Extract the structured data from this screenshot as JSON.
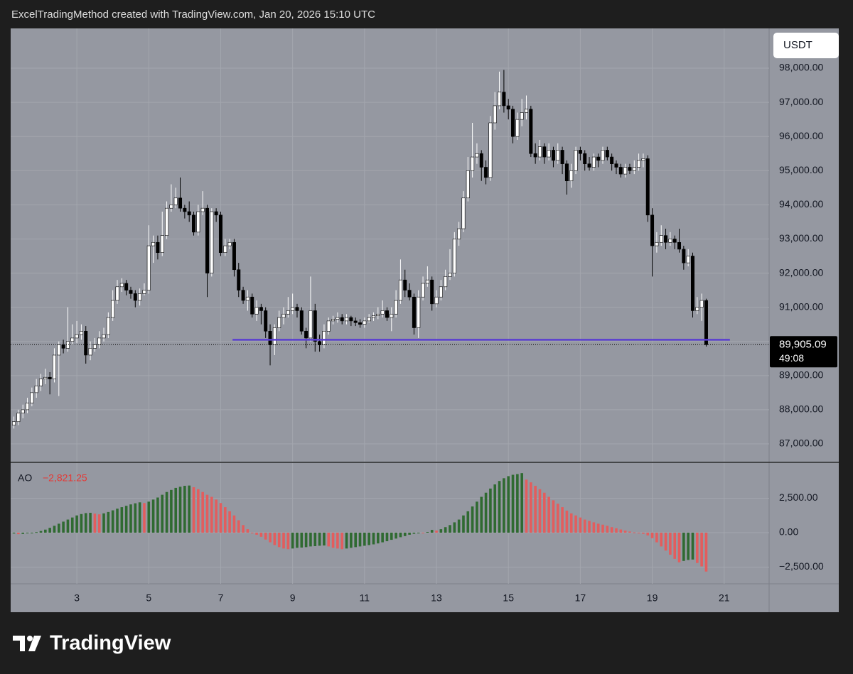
{
  "header": "ExcelTradingMethod created with TradingView.com, Jan 20, 2026 15:10 UTC",
  "currency_button": "USDT",
  "brand": "TradingView",
  "chart_data": [
    {
      "type": "candlestick",
      "x": [
        1.25,
        1.375,
        1.5,
        1.625,
        1.75,
        1.875,
        2,
        2.125,
        2.25,
        2.375,
        2.5,
        2.625,
        2.75,
        2.875,
        3,
        3.125,
        3.25,
        3.375,
        3.5,
        3.625,
        3.75,
        3.875,
        4,
        4.125,
        4.25,
        4.375,
        4.5,
        4.625,
        4.75,
        4.875,
        5,
        5.125,
        5.25,
        5.375,
        5.5,
        5.625,
        5.75,
        5.875,
        6,
        6.125,
        6.25,
        6.375,
        6.5,
        6.625,
        6.75,
        6.875,
        7,
        7.125,
        7.25,
        7.375,
        7.5,
        7.625,
        7.75,
        7.875,
        8,
        8.125,
        8.25,
        8.375,
        8.5,
        8.625,
        8.75,
        8.875,
        9,
        9.125,
        9.25,
        9.375,
        9.5,
        9.625,
        9.75,
        9.875,
        10,
        10.125,
        10.25,
        10.375,
        10.5,
        10.625,
        10.75,
        10.875,
        11,
        11.125,
        11.25,
        11.375,
        11.5,
        11.625,
        11.75,
        11.875,
        12,
        12.125,
        12.25,
        12.375,
        12.5,
        12.625,
        12.75,
        12.875,
        13,
        13.125,
        13.25,
        13.375,
        13.5,
        13.625,
        13.75,
        13.875,
        14,
        14.125,
        14.25,
        14.375,
        14.5,
        14.625,
        14.75,
        14.875,
        15,
        15.125,
        15.25,
        15.375,
        15.5,
        15.625,
        15.75,
        15.875,
        16,
        16.125,
        16.25,
        16.375,
        16.5,
        16.625,
        16.75,
        16.875,
        17,
        17.125,
        17.25,
        17.375,
        17.5,
        17.625,
        17.75,
        17.875,
        18,
        18.125,
        18.25,
        18.375,
        18.5,
        18.625,
        18.75,
        18.875,
        19,
        19.125,
        19.25,
        19.375,
        19.5,
        19.625,
        19.75,
        19.875,
        20,
        20.125,
        20.25,
        20.375,
        20.5
      ],
      "open": [
        87550,
        87650,
        87900,
        88000,
        88200,
        88500,
        88700,
        88900,
        88950,
        88900,
        89600,
        89900,
        89800,
        90000,
        90100,
        90200,
        90300,
        89600,
        89800,
        89900,
        90100,
        90200,
        90700,
        91200,
        91600,
        91700,
        91500,
        91400,
        91200,
        91400,
        91500,
        92800,
        92900,
        92600,
        93100,
        93900,
        94000,
        94200,
        93900,
        93800,
        93700,
        93200,
        93800,
        93900,
        92000,
        93800,
        93700,
        92600,
        92800,
        92900,
        92100,
        91500,
        91200,
        91300,
        90800,
        91000,
        90900,
        90300,
        89900,
        90400,
        90700,
        90800,
        90900,
        91000,
        90900,
        90300,
        90100,
        90900,
        90000,
        89900,
        90300,
        90600,
        90650,
        90700,
        90600,
        90700,
        90600,
        90550,
        90500,
        90600,
        90700,
        90750,
        90800,
        90900,
        90700,
        90800,
        91200,
        91800,
        91500,
        91300,
        90400,
        91300,
        91700,
        91800,
        91100,
        91300,
        91600,
        91900,
        92000,
        93000,
        93300,
        94200,
        95000,
        95400,
        95500,
        95100,
        94800,
        96400,
        96900,
        97300,
        96900,
        96800,
        96000,
        96500,
        96700,
        96800,
        95500,
        95400,
        95700,
        95400,
        95600,
        95300,
        95600,
        95200,
        94700,
        95000,
        95600,
        95500,
        95200,
        95100,
        95400,
        95300,
        95600,
        95400,
        95200,
        95100,
        94900,
        95100,
        95000,
        95100,
        95300,
        95350,
        93700,
        92800,
        92900,
        93100,
        92900,
        93000,
        92900,
        92700,
        92300,
        92500,
        90900,
        91000,
        91200
      ],
      "high": [
        87800,
        88000,
        88150,
        88350,
        88650,
        88900,
        89050,
        89200,
        89100,
        89800,
        90000,
        90050,
        91000,
        90500,
        90600,
        90500,
        90450,
        90000,
        90100,
        90300,
        90400,
        90850,
        91500,
        91800,
        91850,
        91800,
        91600,
        91500,
        91550,
        91700,
        93400,
        93100,
        93100,
        93800,
        94100,
        94600,
        94500,
        94800,
        94000,
        94100,
        93800,
        94000,
        94400,
        94000,
        93900,
        93900,
        93800,
        93000,
        93000,
        93000,
        92300,
        91600,
        91500,
        91400,
        91200,
        91100,
        91000,
        90500,
        90500,
        90900,
        91000,
        91300,
        91400,
        91100,
        91000,
        90400,
        91900,
        91100,
        90200,
        90500,
        90700,
        90750,
        90850,
        90800,
        90800,
        90750,
        90700,
        90650,
        90700,
        90800,
        90850,
        91000,
        91200,
        91000,
        91000,
        91500,
        92400,
        92100,
        91700,
        91400,
        91500,
        91900,
        92200,
        91900,
        91500,
        91800,
        92100,
        92700,
        93200,
        93500,
        94400,
        95400,
        96400,
        95800,
        95600,
        95300,
        96600,
        97300,
        97900,
        97950,
        97100,
        96900,
        96700,
        97100,
        97200,
        96900,
        95800,
        95900,
        95800,
        95800,
        95700,
        95800,
        95700,
        95300,
        95200,
        95700,
        95700,
        95600,
        95400,
        95500,
        95500,
        95700,
        95700,
        95500,
        95300,
        95200,
        95200,
        95200,
        95300,
        95500,
        95500,
        95450,
        93900,
        93200,
        93400,
        93300,
        93200,
        93100,
        93300,
        92800,
        92700,
        92600,
        91300,
        91400,
        91250
      ],
      "low": [
        87450,
        87550,
        87750,
        87900,
        88100,
        88350,
        88550,
        88750,
        88450,
        88800,
        88400,
        89650,
        89700,
        89900,
        89950,
        90050,
        89350,
        89450,
        89700,
        89800,
        90000,
        90100,
        90600,
        91100,
        91450,
        91350,
        91250,
        91000,
        91050,
        91350,
        91400,
        92300,
        92400,
        92500,
        93000,
        93800,
        93900,
        93800,
        93600,
        93500,
        93100,
        93100,
        93700,
        91300,
        91900,
        93500,
        92500,
        92500,
        92700,
        91900,
        91300,
        91100,
        90900,
        90700,
        90600,
        90500,
        90100,
        89300,
        89600,
        90300,
        90500,
        90700,
        90800,
        90700,
        90200,
        89800,
        90000,
        89700,
        89700,
        89800,
        90200,
        90500,
        90550,
        90500,
        90500,
        90450,
        90450,
        90400,
        90400,
        90550,
        90600,
        90650,
        90700,
        90600,
        90300,
        90700,
        91100,
        91300,
        91200,
        90200,
        90100,
        91200,
        91600,
        90900,
        91000,
        91200,
        91500,
        91800,
        91900,
        92800,
        93200,
        94100,
        94800,
        95200,
        94700,
        94600,
        94700,
        96200,
        96800,
        96700,
        96500,
        95800,
        95900,
        96300,
        96500,
        95400,
        95200,
        95300,
        95200,
        95300,
        95100,
        95200,
        94900,
        94300,
        94500,
        94900,
        95300,
        95000,
        95000,
        95000,
        95100,
        95200,
        95300,
        95000,
        94900,
        94800,
        94800,
        94900,
        94900,
        95000,
        95100,
        93500,
        91900,
        92600,
        92800,
        92700,
        92800,
        92700,
        92600,
        92100,
        92200,
        90700,
        90800,
        90600,
        89850
      ],
      "close": [
        87650,
        87900,
        88000,
        88200,
        88500,
        88700,
        88900,
        88950,
        88900,
        89600,
        89900,
        89800,
        90000,
        90100,
        90200,
        90300,
        89600,
        89800,
        89900,
        90100,
        90200,
        90700,
        91200,
        91600,
        91700,
        91500,
        91400,
        91200,
        91400,
        91500,
        92800,
        92900,
        92600,
        93100,
        93900,
        94000,
        94200,
        93900,
        93800,
        93700,
        93200,
        93800,
        93900,
        92000,
        93800,
        93700,
        92600,
        92800,
        92900,
        92100,
        91500,
        91200,
        91300,
        90800,
        91000,
        90900,
        90300,
        89900,
        90400,
        90700,
        90800,
        90900,
        91000,
        90900,
        90300,
        90100,
        90900,
        90000,
        89900,
        90300,
        90600,
        90650,
        90700,
        90600,
        90700,
        90600,
        90550,
        90500,
        90600,
        90700,
        90750,
        90800,
        90900,
        90700,
        90800,
        91200,
        91800,
        91500,
        91300,
        90400,
        91300,
        91700,
        91800,
        91100,
        91300,
        91600,
        91900,
        92000,
        93000,
        93300,
        94200,
        95000,
        95400,
        95500,
        95100,
        94800,
        96400,
        96900,
        97300,
        96900,
        96800,
        96000,
        96500,
        96700,
        96800,
        95500,
        95400,
        95700,
        95400,
        95600,
        95300,
        95600,
        95200,
        94700,
        95000,
        95600,
        95500,
        95200,
        95100,
        95400,
        95300,
        95600,
        95400,
        95200,
        95100,
        94900,
        95100,
        95000,
        95100,
        95300,
        95350,
        93700,
        92800,
        92900,
        93100,
        92900,
        93000,
        92900,
        92700,
        92300,
        92500,
        90900,
        91000,
        91200,
        89905.09
      ],
      "up_color": "#ffffff",
      "down_color": "#000000",
      "xlim": [
        1.16,
        22.25
      ],
      "ylim": [
        86480,
        99165
      ],
      "yticks": [
        {
          "value": 87000,
          "label": "87,000.00"
        },
        {
          "value": 88000,
          "label": "88,000.00"
        },
        {
          "value": 89000,
          "label": "89,000.00"
        },
        {
          "value": 90000,
          "label": "90,000.00"
        },
        {
          "value": 91000,
          "label": "91,000.00"
        },
        {
          "value": 92000,
          "label": "92,000.00"
        },
        {
          "value": 93000,
          "label": "93,000.00"
        },
        {
          "value": 94000,
          "label": "94,000.00"
        },
        {
          "value": 95000,
          "label": "95,000.00"
        },
        {
          "value": 96000,
          "label": "96,000.00"
        },
        {
          "value": 97000,
          "label": "97,000.00"
        },
        {
          "value": 98000,
          "label": "98,000.00"
        }
      ],
      "grid": true,
      "hline": {
        "value": 90050,
        "x": [
          7.33,
          21.16
        ],
        "color": "#5b3fd1"
      },
      "last_price_label": "89,905.09",
      "countdown": "49:08"
    },
    {
      "type": "bar",
      "title": "AO",
      "last_value_label": "−2,821.25",
      "x": [
        1.25,
        1.375,
        1.5,
        1.625,
        1.75,
        1.875,
        2,
        2.125,
        2.25,
        2.375,
        2.5,
        2.625,
        2.75,
        2.875,
        3,
        3.125,
        3.25,
        3.375,
        3.5,
        3.625,
        3.75,
        3.875,
        4,
        4.125,
        4.25,
        4.375,
        4.5,
        4.625,
        4.75,
        4.875,
        5,
        5.125,
        5.25,
        5.375,
        5.5,
        5.625,
        5.75,
        5.875,
        6,
        6.125,
        6.25,
        6.375,
        6.5,
        6.625,
        6.75,
        6.875,
        7,
        7.125,
        7.25,
        7.375,
        7.5,
        7.625,
        7.75,
        7.875,
        8,
        8.125,
        8.25,
        8.375,
        8.5,
        8.625,
        8.75,
        8.875,
        9,
        9.125,
        9.25,
        9.375,
        9.5,
        9.625,
        9.75,
        9.875,
        10,
        10.125,
        10.25,
        10.375,
        10.5,
        10.625,
        10.75,
        10.875,
        11,
        11.125,
        11.25,
        11.375,
        11.5,
        11.625,
        11.75,
        11.875,
        12,
        12.125,
        12.25,
        12.375,
        12.5,
        12.625,
        12.75,
        12.875,
        13,
        13.125,
        13.25,
        13.375,
        13.5,
        13.625,
        13.75,
        13.875,
        14,
        14.125,
        14.25,
        14.375,
        14.5,
        14.625,
        14.75,
        14.875,
        15,
        15.125,
        15.25,
        15.375,
        15.5,
        15.625,
        15.75,
        15.875,
        16,
        16.125,
        16.25,
        16.375,
        16.5,
        16.625,
        16.75,
        16.875,
        17,
        17.125,
        17.25,
        17.375,
        17.5,
        17.625,
        17.75,
        17.875,
        18,
        18.125,
        18.25,
        18.375,
        18.5,
        18.625,
        18.75,
        18.875,
        19,
        19.125,
        19.25,
        19.375,
        19.5,
        19.625,
        19.75,
        19.875,
        20,
        20.125,
        20.25,
        20.375,
        20.5
      ],
      "values": [
        -60,
        -110,
        -90,
        -50,
        -10,
        40,
        120,
        220,
        350,
        500,
        650,
        800,
        950,
        1100,
        1250,
        1350,
        1420,
        1440,
        1380,
        1330,
        1400,
        1500,
        1620,
        1740,
        1850,
        1950,
        2050,
        2130,
        2200,
        2150,
        2250,
        2400,
        2550,
        2750,
        2950,
        3100,
        3250,
        3330,
        3400,
        3420,
        3300,
        3150,
        2950,
        2750,
        2600,
        2400,
        2150,
        1850,
        1550,
        1250,
        900,
        550,
        250,
        0,
        -150,
        -300,
        -500,
        -700,
        -900,
        -1050,
        -1150,
        -1200,
        -1150,
        -1100,
        -1080,
        -1050,
        -1000,
        -980,
        -950,
        -930,
        -1000,
        -1100,
        -1150,
        -1200,
        -1150,
        -1100,
        -1050,
        -1000,
        -950,
        -900,
        -850,
        -780,
        -700,
        -620,
        -520,
        -430,
        -330,
        -250,
        -150,
        -80,
        -30,
        -50,
        50,
        200,
        150,
        250,
        400,
        550,
        750,
        950,
        1250,
        1550,
        1900,
        2250,
        2600,
        2900,
        3200,
        3500,
        3750,
        3950,
        4100,
        4200,
        4250,
        4320,
        3850,
        3650,
        3400,
        3150,
        2900,
        2600,
        2350,
        2100,
        1850,
        1600,
        1400,
        1250,
        1100,
        950,
        850,
        750,
        650,
        580,
        500,
        400,
        320,
        230,
        150,
        80,
        20,
        -30,
        -80,
        -200,
        -400,
        -700,
        -1000,
        -1300,
        -1600,
        -1900,
        -2150,
        -2050,
        -1980,
        -1950,
        -2200,
        -2450,
        -2821.25
      ],
      "up_color": "#2f6a31",
      "down_color": "#e35d5d",
      "xlim": [
        1.16,
        22.25
      ],
      "xticks": [
        3,
        5,
        7,
        9,
        11,
        13,
        15,
        17,
        19,
        21
      ],
      "ylim": [
        -3711,
        5050
      ],
      "yticks": [
        {
          "value": -2500,
          "label": "−2,500.00"
        },
        {
          "value": 0,
          "label": "0.00"
        },
        {
          "value": 2500,
          "label": "2,500.00"
        }
      ],
      "grid": true
    }
  ]
}
